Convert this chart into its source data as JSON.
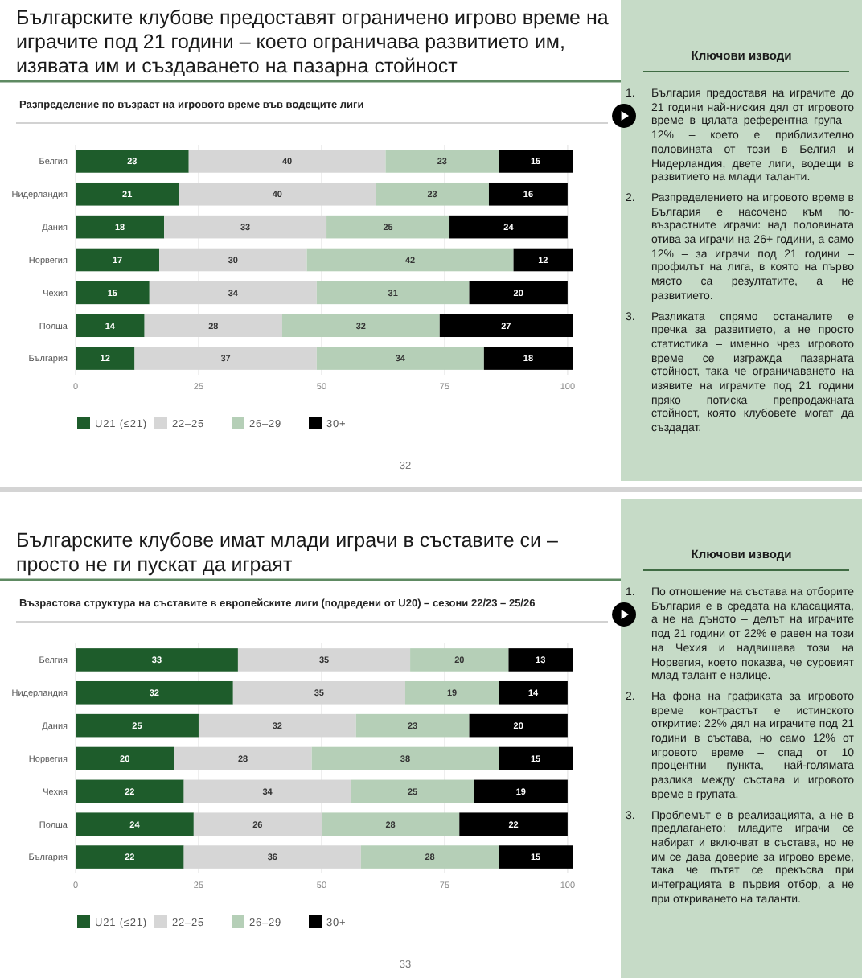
{
  "chart_data": [
    {
      "type": "bar",
      "title": "Българските клубове предоставят ограничено игрово време на играчите под 21 години – което ограничава развитието им, изявата им и създаването на пазарна стойност",
      "subtitle": "Разпределение по възраст на игровото време във водещите лиги",
      "categories": [
        "Белгия",
        "Нидерландия",
        "Дания",
        "Норвегия",
        "Чехия",
        "Полша",
        "България"
      ],
      "orientation": "horizontal",
      "stacked": true,
      "series": [
        {
          "name": "U21 (≤21)",
          "color": "#1e5c2b",
          "values": [
            23,
            21,
            18,
            17,
            15,
            14,
            12
          ]
        },
        {
          "name": "22–25",
          "color": "#d6d6d6",
          "values": [
            40,
            40,
            33,
            30,
            34,
            28,
            37
          ]
        },
        {
          "name": "26–29",
          "color": "#b5cfb7",
          "values": [
            23,
            23,
            25,
            42,
            31,
            32,
            34
          ]
        },
        {
          "name": "30+",
          "color": "#000000",
          "values": [
            15,
            16,
            24,
            12,
            20,
            27,
            18
          ]
        }
      ],
      "xlim": [
        0,
        101
      ],
      "xticks": [
        0,
        25,
        50,
        75,
        100
      ],
      "grid": "x",
      "legend": "bottom",
      "data_labels": true,
      "annotations": [
        "32"
      ]
    },
    {
      "type": "other",
      "title": "Ключови изводи",
      "annotations": [
        "1. България предоставя на играчите до 21 години най-ниския дял от игровото време в цялата референтна група – 12% – което е приблизително половината от този в Белгия и Нидерландия, двете лиги, водещи в развитието на млади таланти.",
        "2. Разпределението на игровото време в България е насочено към по-възрастните играчи: над половината отива за играчи на 26+ години, а само 12% – за играчи под 21 години – профилът на лига, в която на първо място са резултатите, а не развитието.",
        "3. Разликата спрямо останалите е пречка за развитието, а не просто статистика – именно чрез игровото време се изгражда пазарната стойност, така че ограничаването на изявите на играчите под 21 години пряко потиска препродажната стойност, която клубовете могат да създадат."
      ]
    },
    {
      "type": "bar",
      "title": "Българските клубове имат млади играчи в съставите си – просто не ги пускат да играят",
      "subtitle": "Възрастова структура на съставите в европейските лиги (подредени от U20) – сезони 22/23 – 25/26",
      "categories": [
        "Белгия",
        "Нидерландия",
        "Дания",
        "Норвегия",
        "Чехия",
        "Полша",
        "България"
      ],
      "orientation": "horizontal",
      "stacked": true,
      "series": [
        {
          "name": "U21 (≤21)",
          "color": "#1e5c2b",
          "values": [
            33,
            32,
            25,
            20,
            22,
            24,
            22
          ]
        },
        {
          "name": "22–25",
          "color": "#d6d6d6",
          "values": [
            35,
            35,
            32,
            28,
            34,
            26,
            36
          ]
        },
        {
          "name": "26–29",
          "color": "#b5cfb7",
          "values": [
            20,
            19,
            23,
            38,
            25,
            28,
            28
          ]
        },
        {
          "name": "30+",
          "color": "#000000",
          "values": [
            13,
            14,
            20,
            15,
            19,
            22,
            15
          ]
        }
      ],
      "xlim": [
        0,
        101
      ],
      "xticks": [
        0,
        25,
        50,
        75,
        100
      ],
      "grid": "x",
      "legend": "bottom",
      "data_labels": true,
      "annotations": [
        "33"
      ]
    },
    {
      "type": "other",
      "title": "Ключови изводи",
      "annotations": [
        "1. По отношение на състава на отборите България е в средата на класацията, а не на дъното – делът на играчите под 21 години от 22% е равен на този на Чехия и надвишава този на Норвегия, което показва, че суровият млад талант е налице.",
        "2. На фона на графиката за игровото време контрастът е истинското откритие: 22% дял на играчите под 21 години в състава, но само 12% от игровото време – спад от 10 процентни пункта, най-голямата разлика между състава и игровото време в групата.",
        "3. Проблемът е в реализацията, а не в предлагането: младите играчи се набират и включват в състава, но не им се дава доверие за игрово време, така че пътят се прекъсва при интеграцията в първия отбор, а не при откриването на таланти."
      ]
    }
  ]
}
